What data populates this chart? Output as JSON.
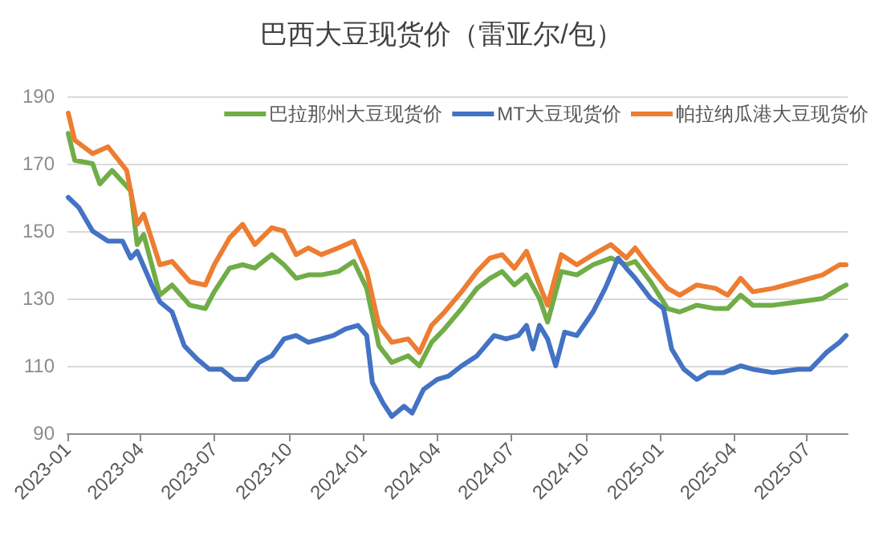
{
  "chart_data": {
    "type": "line",
    "title": "巴西大豆现货价（雷亚尔/包）",
    "legend": "top right",
    "grid": "y",
    "marker": "none",
    "line_style": "solid",
    "xlim": [
      "2023-01-01",
      "2025-08-20"
    ],
    "xticks": [
      "2023-01",
      "2023-04",
      "2023-07",
      "2023-10",
      "2024-01",
      "2024-04",
      "2024-07",
      "2024-10",
      "2025-01",
      "2025-04",
      "2025-07"
    ],
    "ylim": [
      90,
      190
    ],
    "yticks": [
      90,
      110,
      130,
      150,
      170,
      190
    ],
    "series": [
      {
        "name": "巴拉那州大豆现货价",
        "color": "#70ad47",
        "x": [
          "2023-01-02",
          "2023-01-10",
          "2023-02-01",
          "2023-02-10",
          "2023-02-25",
          "2023-03-20",
          "2023-03-28",
          "2023-04-05",
          "2023-04-25",
          "2023-05-10",
          "2023-06-01",
          "2023-06-20",
          "2023-07-01",
          "2023-07-20",
          "2023-08-05",
          "2023-08-20",
          "2023-09-10",
          "2023-09-25",
          "2023-10-10",
          "2023-10-25",
          "2023-11-10",
          "2023-12-01",
          "2023-12-20",
          "2024-01-05",
          "2024-01-20",
          "2024-02-05",
          "2024-02-25",
          "2024-03-10",
          "2024-03-25",
          "2024-04-10",
          "2024-05-01",
          "2024-05-20",
          "2024-06-05",
          "2024-06-20",
          "2024-07-05",
          "2024-07-20",
          "2024-08-05",
          "2024-08-15",
          "2024-09-01",
          "2024-09-20",
          "2024-10-10",
          "2024-11-01",
          "2024-11-20",
          "2024-12-01",
          "2024-12-20",
          "2025-01-10",
          "2025-01-25",
          "2025-02-15",
          "2025-03-10",
          "2025-03-25",
          "2025-04-10",
          "2025-04-25",
          "2025-05-20",
          "2025-06-20",
          "2025-07-20",
          "2025-08-10",
          "2025-08-18"
        ],
        "values": [
          179,
          171,
          170,
          164,
          168,
          162,
          146,
          149,
          131,
          134,
          128,
          127,
          132,
          139,
          140,
          139,
          143,
          140,
          136,
          137,
          137,
          138,
          141,
          133,
          116,
          111,
          113,
          110,
          117,
          121,
          127,
          133,
          136,
          138,
          134,
          137,
          130,
          123,
          138,
          137,
          140,
          142,
          140,
          141,
          135,
          127,
          126,
          128,
          127,
          127,
          131,
          128,
          128,
          129,
          130,
          133,
          134
        ]
      },
      {
        "name": "MT大豆现货价",
        "color": "#4472c4",
        "x": [
          "2023-01-02",
          "2023-01-15",
          "2023-02-01",
          "2023-02-20",
          "2023-03-10",
          "2023-03-20",
          "2023-03-28",
          "2023-04-15",
          "2023-04-25",
          "2023-05-10",
          "2023-05-25",
          "2023-06-10",
          "2023-06-25",
          "2023-07-10",
          "2023-07-25",
          "2023-08-10",
          "2023-08-25",
          "2023-09-10",
          "2023-09-25",
          "2023-10-10",
          "2023-10-25",
          "2023-11-10",
          "2023-11-25",
          "2023-12-10",
          "2023-12-25",
          "2024-01-05",
          "2024-01-12",
          "2024-01-25",
          "2024-02-05",
          "2024-02-20",
          "2024-03-01",
          "2024-03-15",
          "2024-04-01",
          "2024-04-15",
          "2024-05-01",
          "2024-05-20",
          "2024-06-10",
          "2024-06-25",
          "2024-07-10",
          "2024-07-20",
          "2024-07-28",
          "2024-08-05",
          "2024-08-15",
          "2024-08-25",
          "2024-09-05",
          "2024-09-20",
          "2024-10-10",
          "2024-10-25",
          "2024-11-10",
          "2024-11-20",
          "2024-12-01",
          "2024-12-20",
          "2025-01-05",
          "2025-01-15",
          "2025-01-30",
          "2025-02-15",
          "2025-03-01",
          "2025-03-20",
          "2025-04-10",
          "2025-04-25",
          "2025-05-20",
          "2025-06-20",
          "2025-07-05",
          "2025-07-25",
          "2025-08-10",
          "2025-08-18"
        ],
        "values": [
          160,
          157,
          150,
          147,
          147,
          142,
          144,
          134,
          129,
          126,
          116,
          112,
          109,
          109,
          106,
          106,
          111,
          113,
          118,
          119,
          117,
          118,
          119,
          121,
          122,
          119,
          105,
          99,
          95,
          98,
          96,
          103,
          106,
          107,
          110,
          113,
          119,
          118,
          119,
          122,
          115,
          122,
          118,
          110,
          120,
          119,
          126,
          133,
          142,
          139,
          136,
          130,
          127,
          115,
          109,
          106,
          108,
          108,
          110,
          109,
          108,
          109,
          109,
          114,
          117,
          119
        ]
      },
      {
        "name": "帕拉纳瓜港大豆现货价",
        "color": "#ed7d31",
        "x": [
          "2023-01-02",
          "2023-01-10",
          "2023-02-01",
          "2023-02-20",
          "2023-03-15",
          "2023-03-28",
          "2023-04-05",
          "2023-04-25",
          "2023-05-10",
          "2023-06-01",
          "2023-06-20",
          "2023-07-01",
          "2023-07-20",
          "2023-08-05",
          "2023-08-20",
          "2023-09-10",
          "2023-09-25",
          "2023-10-10",
          "2023-10-25",
          "2023-11-10",
          "2023-12-01",
          "2023-12-20",
          "2024-01-05",
          "2024-01-20",
          "2024-02-05",
          "2024-02-25",
          "2024-03-10",
          "2024-03-25",
          "2024-04-10",
          "2024-05-01",
          "2024-05-20",
          "2024-06-05",
          "2024-06-20",
          "2024-07-05",
          "2024-07-20",
          "2024-08-05",
          "2024-08-15",
          "2024-09-01",
          "2024-09-20",
          "2024-10-10",
          "2024-11-01",
          "2024-11-20",
          "2024-12-01",
          "2024-12-20",
          "2025-01-10",
          "2025-01-25",
          "2025-02-15",
          "2025-03-10",
          "2025-03-25",
          "2025-04-10",
          "2025-04-25",
          "2025-05-20",
          "2025-06-20",
          "2025-07-20",
          "2025-08-10",
          "2025-08-18"
        ],
        "values": [
          185,
          177,
          173,
          175,
          168,
          152,
          155,
          140,
          141,
          135,
          134,
          140,
          148,
          152,
          146,
          151,
          150,
          143,
          145,
          143,
          145,
          147,
          138,
          122,
          117,
          118,
          114,
          122,
          126,
          132,
          138,
          142,
          143,
          139,
          144,
          134,
          128,
          143,
          140,
          143,
          146,
          142,
          145,
          139,
          133,
          131,
          134,
          133,
          131,
          136,
          132,
          133,
          135,
          137,
          140,
          140
        ]
      }
    ]
  }
}
